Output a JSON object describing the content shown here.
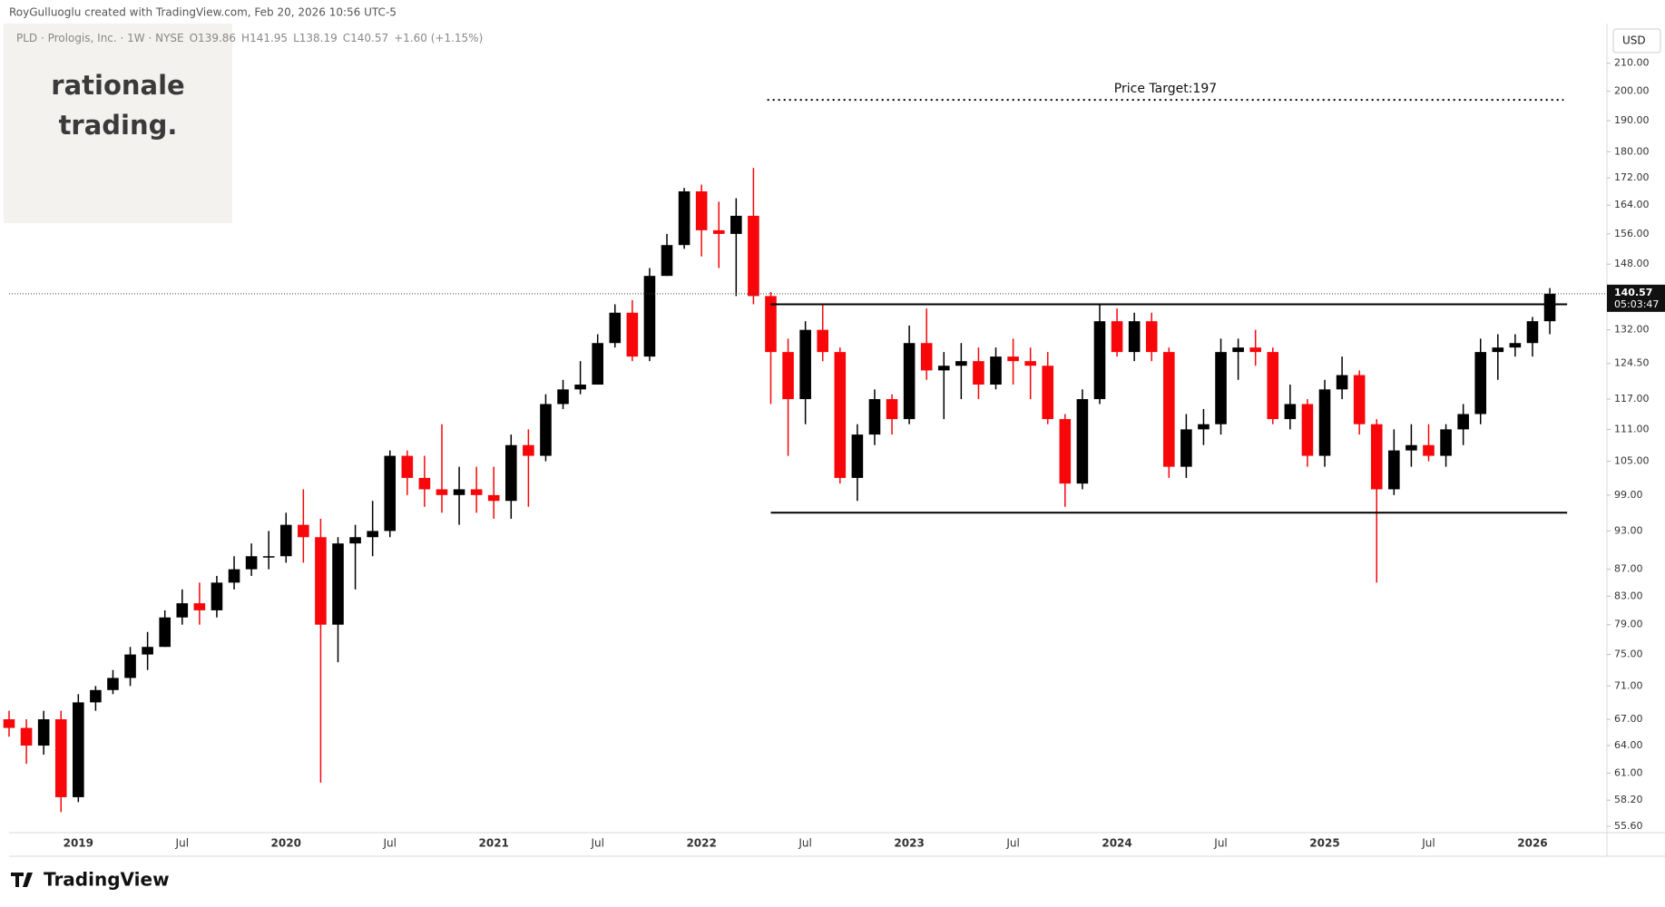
{
  "header": {
    "credit": "RoyGulluoglu created with TradingView.com, Feb 20, 2026 10:56 UTC-5",
    "legend": "PLD · Prologis, Inc. · 1W · NYSE",
    "open": "O139.86",
    "high": "H141.95",
    "low": "L138.19",
    "close": "C140.57",
    "change": "+1.60 (+1.15%)"
  },
  "watermark": [
    "rationale",
    "trading."
  ],
  "logo": "TradingView",
  "chart_data": {
    "type": "candlestick",
    "currency": "USD",
    "log_scale": true,
    "up_color": "#000000",
    "down_color": "#f7060a",
    "categories": [
      null,
      null,
      null,
      null,
      "2019",
      null,
      null,
      null,
      null,
      null,
      "Jul",
      null,
      null,
      null,
      null,
      null,
      "2020",
      null,
      null,
      null,
      null,
      null,
      "Jul",
      null,
      null,
      null,
      null,
      null,
      "2021",
      null,
      null,
      null,
      null,
      null,
      "Jul",
      null,
      null,
      null,
      null,
      null,
      "2022",
      null,
      null,
      null,
      null,
      null,
      "Jul",
      null,
      null,
      null,
      null,
      null,
      "2023",
      null,
      null,
      null,
      null,
      null,
      "Jul",
      null,
      null,
      null,
      null,
      null,
      "2024",
      null,
      null,
      null,
      null,
      null,
      "Jul",
      null,
      null,
      null,
      null,
      null,
      "2025",
      null,
      null,
      null,
      null,
      null,
      "Jul",
      null,
      null,
      null,
      null,
      null,
      "2026",
      null
    ],
    "open": [
      67,
      66,
      64,
      67,
      58.5,
      69,
      70.5,
      72,
      75,
      76,
      80,
      82,
      81,
      85,
      87,
      89,
      89,
      94,
      92,
      79,
      91,
      92,
      93,
      106,
      102,
      100,
      99,
      100,
      99,
      98,
      108,
      106,
      116,
      119,
      120,
      129,
      136,
      126,
      145,
      153,
      168,
      157,
      156,
      161,
      140,
      127,
      117,
      132,
      127,
      102,
      110,
      117,
      113,
      129,
      123,
      124,
      125,
      120,
      126,
      125,
      124,
      113,
      101,
      117,
      134,
      127,
      134,
      127,
      104,
      111,
      112,
      127,
      128,
      127,
      113,
      116,
      106,
      119,
      122,
      112,
      100,
      107,
      108,
      106,
      111,
      114,
      127,
      128,
      129,
      134
    ],
    "high": [
      68,
      67,
      68,
      68,
      70,
      71,
      73,
      76,
      78,
      81,
      84,
      85,
      86,
      89,
      91,
      93,
      96,
      100,
      95,
      92,
      94,
      98,
      107,
      107,
      106,
      112,
      104,
      104,
      104,
      110,
      111,
      118,
      121,
      125,
      131,
      138,
      139,
      147,
      156,
      169,
      170,
      165,
      166,
      175,
      141,
      130,
      134,
      138,
      128,
      112,
      119,
      118,
      133,
      137,
      127,
      129,
      128,
      128,
      130,
      128,
      127,
      114,
      119,
      138,
      137,
      136,
      136,
      128,
      114,
      115,
      130,
      130,
      132,
      128,
      120,
      117,
      121,
      126,
      123,
      113,
      111,
      112,
      112,
      112,
      116,
      130,
      131,
      131,
      135,
      141.95
    ],
    "low": [
      65,
      62,
      63,
      57,
      58,
      68,
      70,
      71,
      73,
      76,
      79,
      79,
      80,
      84,
      86,
      87,
      88,
      88,
      60,
      74,
      84,
      89,
      92,
      99,
      97,
      96,
      94,
      96,
      95,
      95,
      97,
      105,
      115,
      118,
      120,
      128,
      125,
      125,
      145,
      152,
      150,
      147,
      140,
      138,
      116,
      106,
      112,
      125,
      101,
      98,
      108,
      110,
      112,
      121,
      113,
      117,
      117,
      119,
      120,
      117,
      112,
      97,
      100,
      116,
      126,
      125,
      125,
      102,
      102,
      108,
      110,
      121,
      124,
      112,
      111,
      104,
      104,
      117,
      110,
      85,
      99,
      104,
      105,
      104,
      108,
      112,
      121,
      126,
      126,
      131
    ],
    "close": [
      66,
      64,
      67,
      58.5,
      69,
      70.5,
      72,
      75,
      76,
      80,
      82,
      81,
      85,
      87,
      89,
      89,
      94,
      92,
      79,
      91,
      92,
      93,
      106,
      102,
      100,
      99,
      100,
      99,
      98,
      108,
      106,
      116,
      119,
      120,
      129,
      136,
      126,
      145,
      153,
      168,
      157,
      156,
      161,
      140,
      127,
      117,
      132,
      127,
      102,
      110,
      117,
      113,
      129,
      123,
      124,
      125,
      120,
      126,
      125,
      124,
      113,
      101,
      117,
      134,
      127,
      134,
      127,
      104,
      111,
      112,
      127,
      128,
      127,
      113,
      116,
      106,
      119,
      122,
      112,
      100,
      107,
      108,
      106,
      111,
      114,
      127,
      128,
      129,
      134,
      140.57
    ],
    "ylim": [
      55,
      225
    ],
    "yticks": [
      {
        "value": 210,
        "label": "210.00"
      },
      {
        "value": 200,
        "label": "200.00"
      },
      {
        "value": 190,
        "label": "190.00"
      },
      {
        "value": 180,
        "label": "180.00"
      },
      {
        "value": 172,
        "label": "172.00"
      },
      {
        "value": 164,
        "label": "164.00"
      },
      {
        "value": 156,
        "label": "156.00"
      },
      {
        "value": 148,
        "label": "148.00"
      },
      {
        "value": 132,
        "label": "132.00"
      },
      {
        "value": 124.5,
        "label": "124.50"
      },
      {
        "value": 117,
        "label": "117.00"
      },
      {
        "value": 111,
        "label": "111.00"
      },
      {
        "value": 105,
        "label": "105.00"
      },
      {
        "value": 99,
        "label": "99.00"
      },
      {
        "value": 93,
        "label": "93.00"
      },
      {
        "value": 87,
        "label": "87.00"
      },
      {
        "value": 83,
        "label": "83.00"
      },
      {
        "value": 79,
        "label": "79.00"
      },
      {
        "value": 75,
        "label": "75.00"
      },
      {
        "value": 71,
        "label": "71.00"
      },
      {
        "value": 67,
        "label": "67.00"
      },
      {
        "value": 64,
        "label": "64.00"
      },
      {
        "value": 61,
        "label": "61.00"
      },
      {
        "value": 58.2,
        "label": "58.20"
      },
      {
        "value": 55.6,
        "label": "55.60"
      }
    ],
    "last_price": {
      "value": 140.57,
      "label": "140.57",
      "countdown": "05:03:47"
    },
    "levels": [
      {
        "value": 138,
        "start": 44,
        "end": 90,
        "style": "solid"
      },
      {
        "value": 96,
        "start": 44,
        "end": 90,
        "style": "solid"
      },
      {
        "value": 197,
        "start": 43.8,
        "end": 89.8,
        "style": "dotted",
        "label": "Price Target:197"
      }
    ]
  }
}
